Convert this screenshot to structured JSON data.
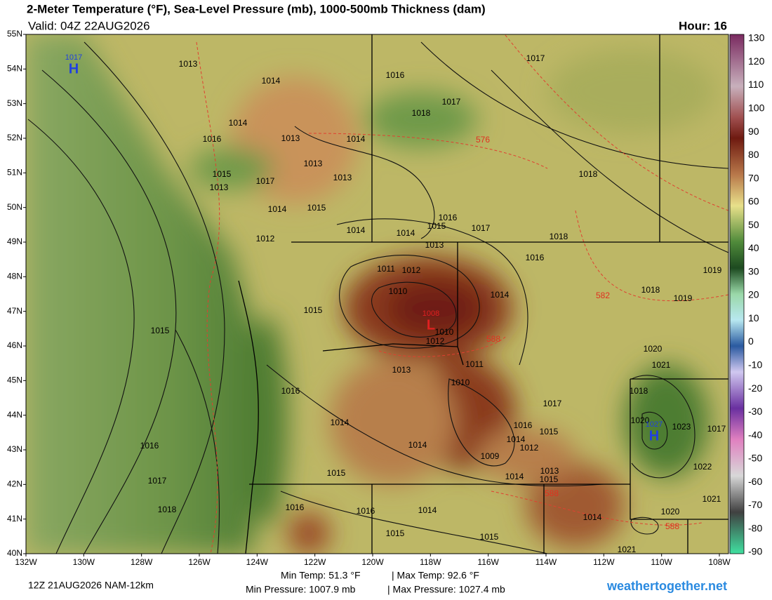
{
  "header": {
    "title": "2-Meter Temperature (°F), Sea-Level Pressure (mb), 1000-500mb Thickness (dam)",
    "valid": "Valid: 04Z 22AUG2026",
    "hour": "Hour: 16"
  },
  "latitude_labels": [
    "55N",
    "54N",
    "53N",
    "52N",
    "51N",
    "50N",
    "49N",
    "48N",
    "47N",
    "46N",
    "45N",
    "44N",
    "43N",
    "42N",
    "41N",
    "40N"
  ],
  "longitude_labels": [
    "132W",
    "130W",
    "128W",
    "126W",
    "124W",
    "122W",
    "120W",
    "118W",
    "116W",
    "114W",
    "112W",
    "110W",
    "108W"
  ],
  "colorbar": {
    "labels": [
      130,
      120,
      110,
      100,
      90,
      80,
      70,
      60,
      50,
      40,
      30,
      20,
      10,
      0,
      -10,
      -20,
      -30,
      -40,
      -50,
      -60,
      -70,
      -80,
      -90
    ]
  },
  "pressure_labels": [
    "1013",
    "1014",
    "1014",
    "1016",
    "1017",
    "1016",
    "1013",
    "1014",
    "1018",
    "1017",
    "1013",
    "1015",
    "1017",
    "1013",
    "1013",
    "1014",
    "1015",
    "1018",
    "1016",
    "1015",
    "1017",
    "1014",
    "1014",
    "1012",
    "1018",
    "1013",
    "1016",
    "1019",
    "1011",
    "1012",
    "1018",
    "1010",
    "1014",
    "1019",
    "1015",
    "1015",
    "1010",
    "1012",
    "1020",
    "1011",
    "1021",
    "1013",
    "1010",
    "1016",
    "1018",
    "1017",
    "1020",
    "1023",
    "1017",
    "1014",
    "1016",
    "1015",
    "1014",
    "1012",
    "1014",
    "1016",
    "1009",
    "1022",
    "1015",
    "1013",
    "1014",
    "1015",
    "1017",
    "1021",
    "1018",
    "1016",
    "1016",
    "1014",
    "1020",
    "1014",
    "1015",
    "1015",
    "1021"
  ],
  "thickness_labels": [
    "576",
    "582",
    "588",
    "588",
    "588"
  ],
  "centers": [
    {
      "letter": "H",
      "value": "1017"
    },
    {
      "letter": "L",
      "value": "1008"
    },
    {
      "letter": "H",
      "value": "1027"
    }
  ],
  "footer": {
    "run": "12Z 21AUG2026 NAM-12km",
    "min_temp": "Min Temp:  51.3 °F",
    "max_temp": "| Max Temp:  92.6 °F",
    "min_pressure": "Min Pressure: 1007.9 mb",
    "max_pressure": "| Max Pressure: 1027.4 mb",
    "site": "weathertogether.net"
  }
}
